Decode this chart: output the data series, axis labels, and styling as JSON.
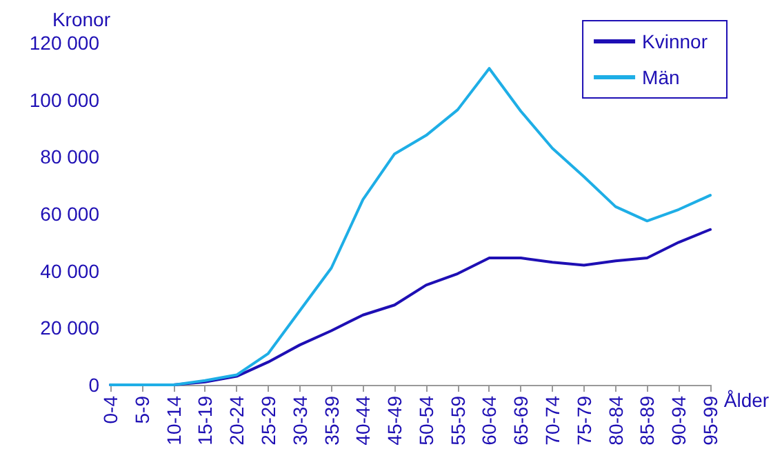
{
  "chart_data": {
    "type": "line",
    "ylabel": "Kronor",
    "xlabel": "Ålder",
    "categories": [
      "0-4",
      "5-9",
      "10-14",
      "15-19",
      "20-24",
      "25-29",
      "30-34",
      "35-39",
      "40-44",
      "45-49",
      "50-54",
      "55-59",
      "60-64",
      "65-69",
      "70-74",
      "75-79",
      "80-84",
      "85-89",
      "90-94",
      "95-99"
    ],
    "series": [
      {
        "name": "Kvinnor",
        "color": "#1e0fb4",
        "values": [
          0,
          0,
          0,
          1000,
          3000,
          8000,
          14000,
          19000,
          24500,
          28000,
          35000,
          39000,
          44500,
          44500,
          43000,
          42000,
          43500,
          44500,
          50000,
          54500
        ]
      },
      {
        "name": "Män",
        "color": "#1eaee6",
        "values": [
          0,
          0,
          0,
          1500,
          3500,
          11000,
          26000,
          41000,
          65000,
          81000,
          87500,
          96500,
          111000,
          96000,
          83000,
          73000,
          62500,
          57500,
          61500,
          66500
        ]
      }
    ],
    "ylim": [
      0,
      120000
    ],
    "yticks": [
      {
        "value": 0,
        "label": "0"
      },
      {
        "value": 20000,
        "label": "20 000"
      },
      {
        "value": 40000,
        "label": "40 000"
      },
      {
        "value": 60000,
        "label": "60 000"
      },
      {
        "value": 80000,
        "label": "80 000"
      },
      {
        "value": 100000,
        "label": "100 000"
      },
      {
        "value": 120000,
        "label": "120 000"
      }
    ],
    "grid": false,
    "legend": "top right",
    "marker": "none",
    "line_style": "solid"
  }
}
